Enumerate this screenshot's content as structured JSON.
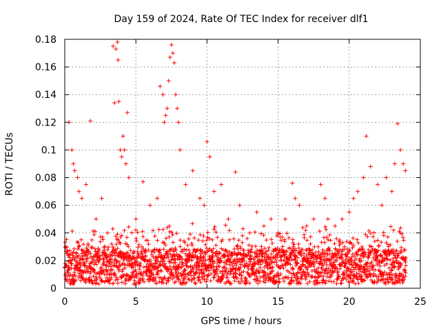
{
  "chart_data": {
    "type": "scatter",
    "title": "Day 159 of 2024, Rate Of TEC Index for receiver dlf1",
    "xlabel": "GPS time / hours",
    "ylabel": "ROTI / TECUs",
    "xlim": [
      0,
      25
    ],
    "ylim": [
      0,
      0.18
    ],
    "x_ticks": [
      0,
      5,
      10,
      15,
      20,
      25
    ],
    "x_tick_labels": [
      "0",
      "5",
      "10",
      "15",
      "20",
      "25"
    ],
    "y_ticks": [
      0,
      0.02,
      0.04,
      0.06,
      0.08,
      0.1,
      0.12,
      0.14,
      0.16,
      0.18
    ],
    "y_tick_labels": [
      "0",
      "0.02",
      "0.04",
      "0.06",
      "0.08",
      "0.1",
      "0.12",
      "0.14",
      "0.16",
      "0.18"
    ],
    "grid": true,
    "marker": "+",
    "color": "#ff0000",
    "series": [
      {
        "name": "ROTI",
        "x": [
          0.05,
          0.3,
          0.5,
          0.6,
          0.7,
          0.9,
          1.0,
          1.2,
          1.5,
          1.8,
          2.2,
          2.6,
          3.0,
          3.4,
          3.5,
          3.6,
          3.7,
          3.75,
          3.8,
          3.9,
          4.0,
          4.1,
          4.2,
          4.3,
          4.4,
          4.5,
          5.0,
          5.5,
          6.0,
          6.5,
          6.7,
          6.9,
          7.0,
          7.1,
          7.2,
          7.3,
          7.4,
          7.5,
          7.6,
          7.7,
          7.8,
          7.9,
          8.0,
          8.1,
          8.5,
          9.0,
          9.5,
          9.8,
          10.0,
          10.2,
          10.5,
          11.0,
          11.5,
          12.0,
          12.3,
          13.0,
          13.5,
          14.0,
          14.5,
          15.0,
          15.5,
          16.0,
          16.2,
          16.5,
          17.0,
          17.5,
          18.0,
          18.3,
          18.5,
          19.0,
          19.5,
          20.0,
          20.3,
          20.6,
          21.0,
          21.2,
          21.5,
          22.0,
          22.3,
          22.6,
          23.0,
          23.2,
          23.4,
          23.6,
          23.8,
          23.95
        ],
        "y": [
          0.03,
          0.12,
          0.1,
          0.09,
          0.085,
          0.08,
          0.07,
          0.065,
          0.075,
          0.121,
          0.05,
          0.065,
          0.04,
          0.175,
          0.134,
          0.173,
          0.178,
          0.165,
          0.135,
          0.1,
          0.095,
          0.11,
          0.1,
          0.09,
          0.127,
          0.08,
          0.05,
          0.077,
          0.06,
          0.065,
          0.146,
          0.14,
          0.12,
          0.125,
          0.13,
          0.15,
          0.167,
          0.176,
          0.17,
          0.163,
          0.14,
          0.13,
          0.12,
          0.1,
          0.075,
          0.085,
          0.065,
          0.06,
          0.106,
          0.095,
          0.07,
          0.075,
          0.05,
          0.084,
          0.06,
          0.04,
          0.055,
          0.045,
          0.05,
          0.04,
          0.05,
          0.076,
          0.065,
          0.06,
          0.045,
          0.05,
          0.075,
          0.065,
          0.05,
          0.045,
          0.05,
          0.055,
          0.065,
          0.07,
          0.08,
          0.11,
          0.088,
          0.075,
          0.06,
          0.08,
          0.07,
          0.09,
          0.119,
          0.1,
          0.09,
          0.085
        ]
      }
    ],
    "background_band": {
      "y_min": 0.003,
      "y_max": 0.028
    }
  }
}
